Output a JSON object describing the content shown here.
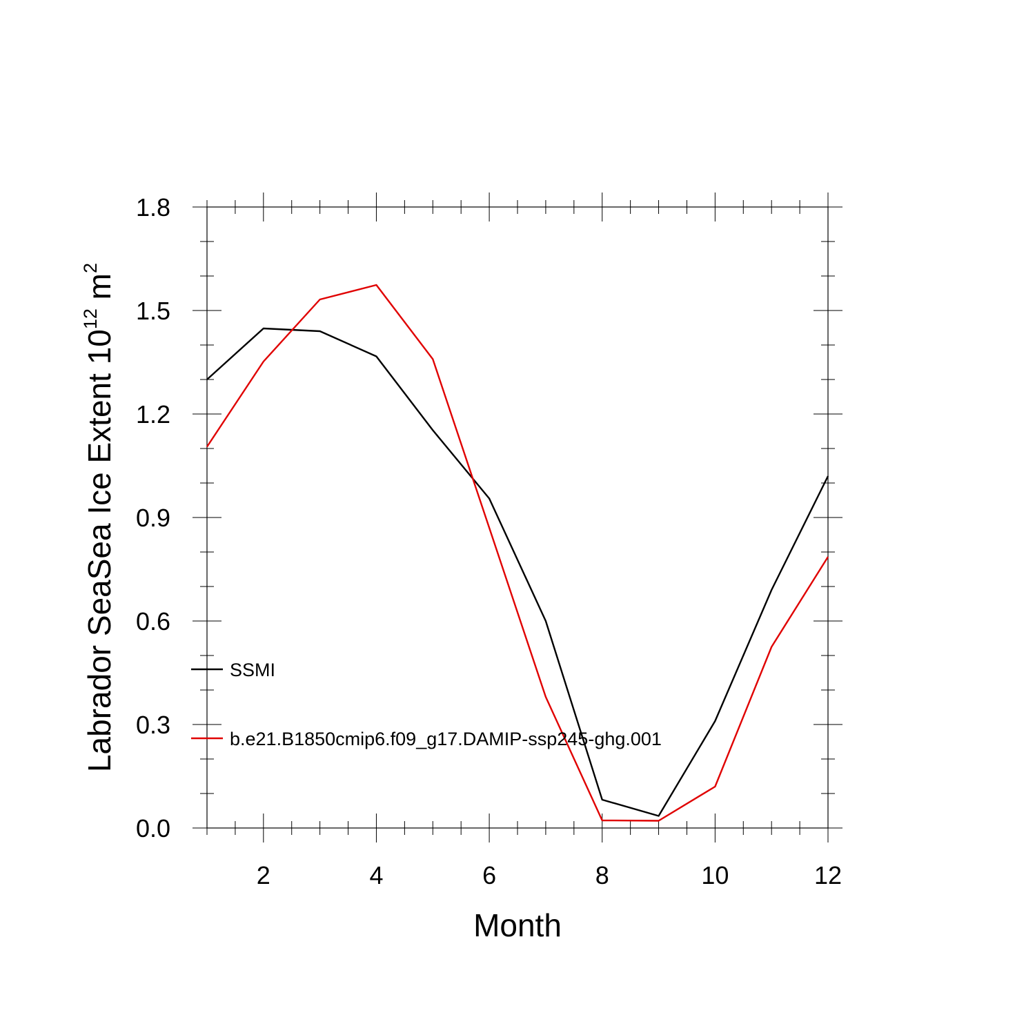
{
  "chart_data": {
    "type": "line",
    "title": "",
    "xlabel": "Month",
    "ylabel": {
      "prefix": "Labrador SeaSea Ice Extent 10",
      "exponent": "12",
      "unit": " m",
      "unit_exponent": "2"
    },
    "xlim": [
      1,
      12
    ],
    "ylim": [
      0.0,
      1.8
    ],
    "xticks": [
      2,
      4,
      6,
      8,
      10,
      12
    ],
    "yticks": [
      0.0,
      0.3,
      0.6,
      0.9,
      1.2,
      1.5,
      1.8
    ],
    "ytick_labels": [
      "0.0",
      "0.3",
      "0.6",
      "0.9",
      "1.2",
      "1.5",
      "1.8"
    ],
    "x": [
      1,
      2,
      3,
      4,
      5,
      6,
      7,
      8,
      9,
      10,
      11,
      12
    ],
    "series": [
      {
        "name": "SSMI",
        "color": "#000000",
        "values": [
          1.3,
          1.448,
          1.44,
          1.367,
          1.153,
          0.955,
          0.6,
          0.082,
          0.035,
          0.31,
          0.69,
          1.02
        ]
      },
      {
        "name": "b.e21.B1850cmip6.f09_g17.DAMIP-ssp245-ghg.001",
        "color": "#e00000",
        "values": [
          1.105,
          1.352,
          1.532,
          1.574,
          1.359,
          0.87,
          0.38,
          0.022,
          0.021,
          0.12,
          0.525,
          0.786
        ]
      }
    ],
    "legend_position": "lower-left inside"
  }
}
